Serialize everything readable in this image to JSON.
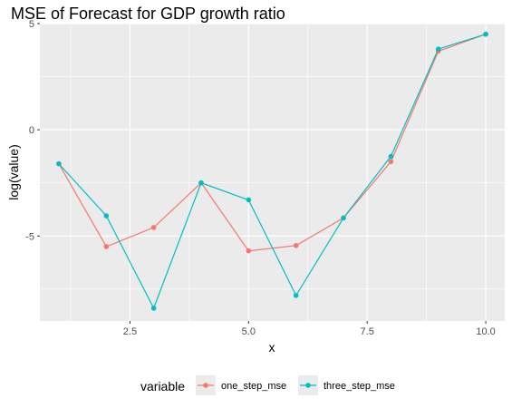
{
  "chart_data": {
    "type": "line",
    "title": "MSE of Forecast for GDP growth ratio",
    "xlabel": "x",
    "ylabel": "log(value)",
    "xlim": [
      0.6,
      10.4
    ],
    "ylim": [
      -9.0,
      5.0
    ],
    "x_ticks": [
      2.5,
      5.0,
      7.5,
      10.0
    ],
    "x_tick_labels": [
      "2.5",
      "5.0",
      "7.5",
      "10.0"
    ],
    "y_ticks": [
      -5,
      0,
      5
    ],
    "y_tick_labels": [
      "-5",
      "0",
      "5"
    ],
    "grid": true,
    "legend_title": "variable",
    "legend_position": "bottom",
    "x": [
      1,
      2,
      3,
      4,
      5,
      6,
      7,
      8,
      9,
      10
    ],
    "series": [
      {
        "name": "one_step_mse",
        "color": "#F8766D",
        "values": [
          -1.6,
          -5.5,
          -4.6,
          -2.5,
          -5.7,
          -5.45,
          -4.15,
          -1.5,
          3.7,
          4.5
        ]
      },
      {
        "name": "three_step_mse",
        "color": "#00BFC4",
        "values": [
          -1.6,
          -4.05,
          -8.4,
          -2.5,
          -3.3,
          -7.8,
          -4.15,
          -1.25,
          3.8,
          4.5
        ]
      }
    ]
  }
}
